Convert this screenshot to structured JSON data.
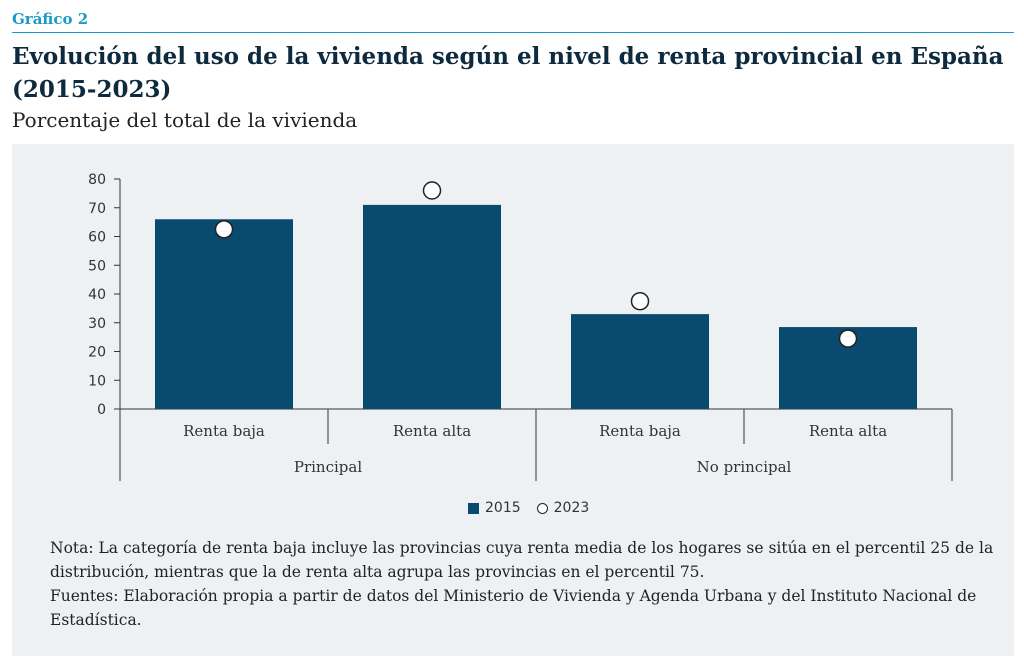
{
  "figure_label": "Gráfico 2",
  "title": "Evolución del uso de la vivienda según el nivel de renta provincial en España (2015-2023)",
  "subtitle": "Porcentaje del total de la vivienda",
  "colors": {
    "bar": "#0a4a6e",
    "accent": "#1a9ac9",
    "panel": "#eef1f4"
  },
  "chart_data": {
    "type": "bar",
    "categories": [
      "Renta baja",
      "Renta alta",
      "Renta baja",
      "Renta alta"
    ],
    "groups": [
      "Principal",
      "No principal"
    ],
    "series": [
      {
        "name": "2015",
        "values": [
          66,
          71,
          33,
          28.5
        ],
        "mark": "bar"
      },
      {
        "name": "2023",
        "values": [
          62.5,
          76,
          37.5,
          24.5
        ],
        "mark": "circle"
      }
    ],
    "yticks": [
      0,
      10,
      20,
      30,
      40,
      50,
      60,
      70,
      80
    ],
    "ylim": [
      0,
      80
    ],
    "legend_position": "bottom",
    "grid": false
  },
  "notes": [
    "Nota: La categoría de renta baja incluye las provincias cuya renta media de los hogares se sitúa en el percentil 25 de la distribución, mientras que la de renta alta agrupa las provincias en el percentil 75.",
    "Fuentes: Elaboración propia a partir de datos del Ministerio de Vivienda y Agenda Urbana y del Instituto Nacional de Estadística."
  ]
}
